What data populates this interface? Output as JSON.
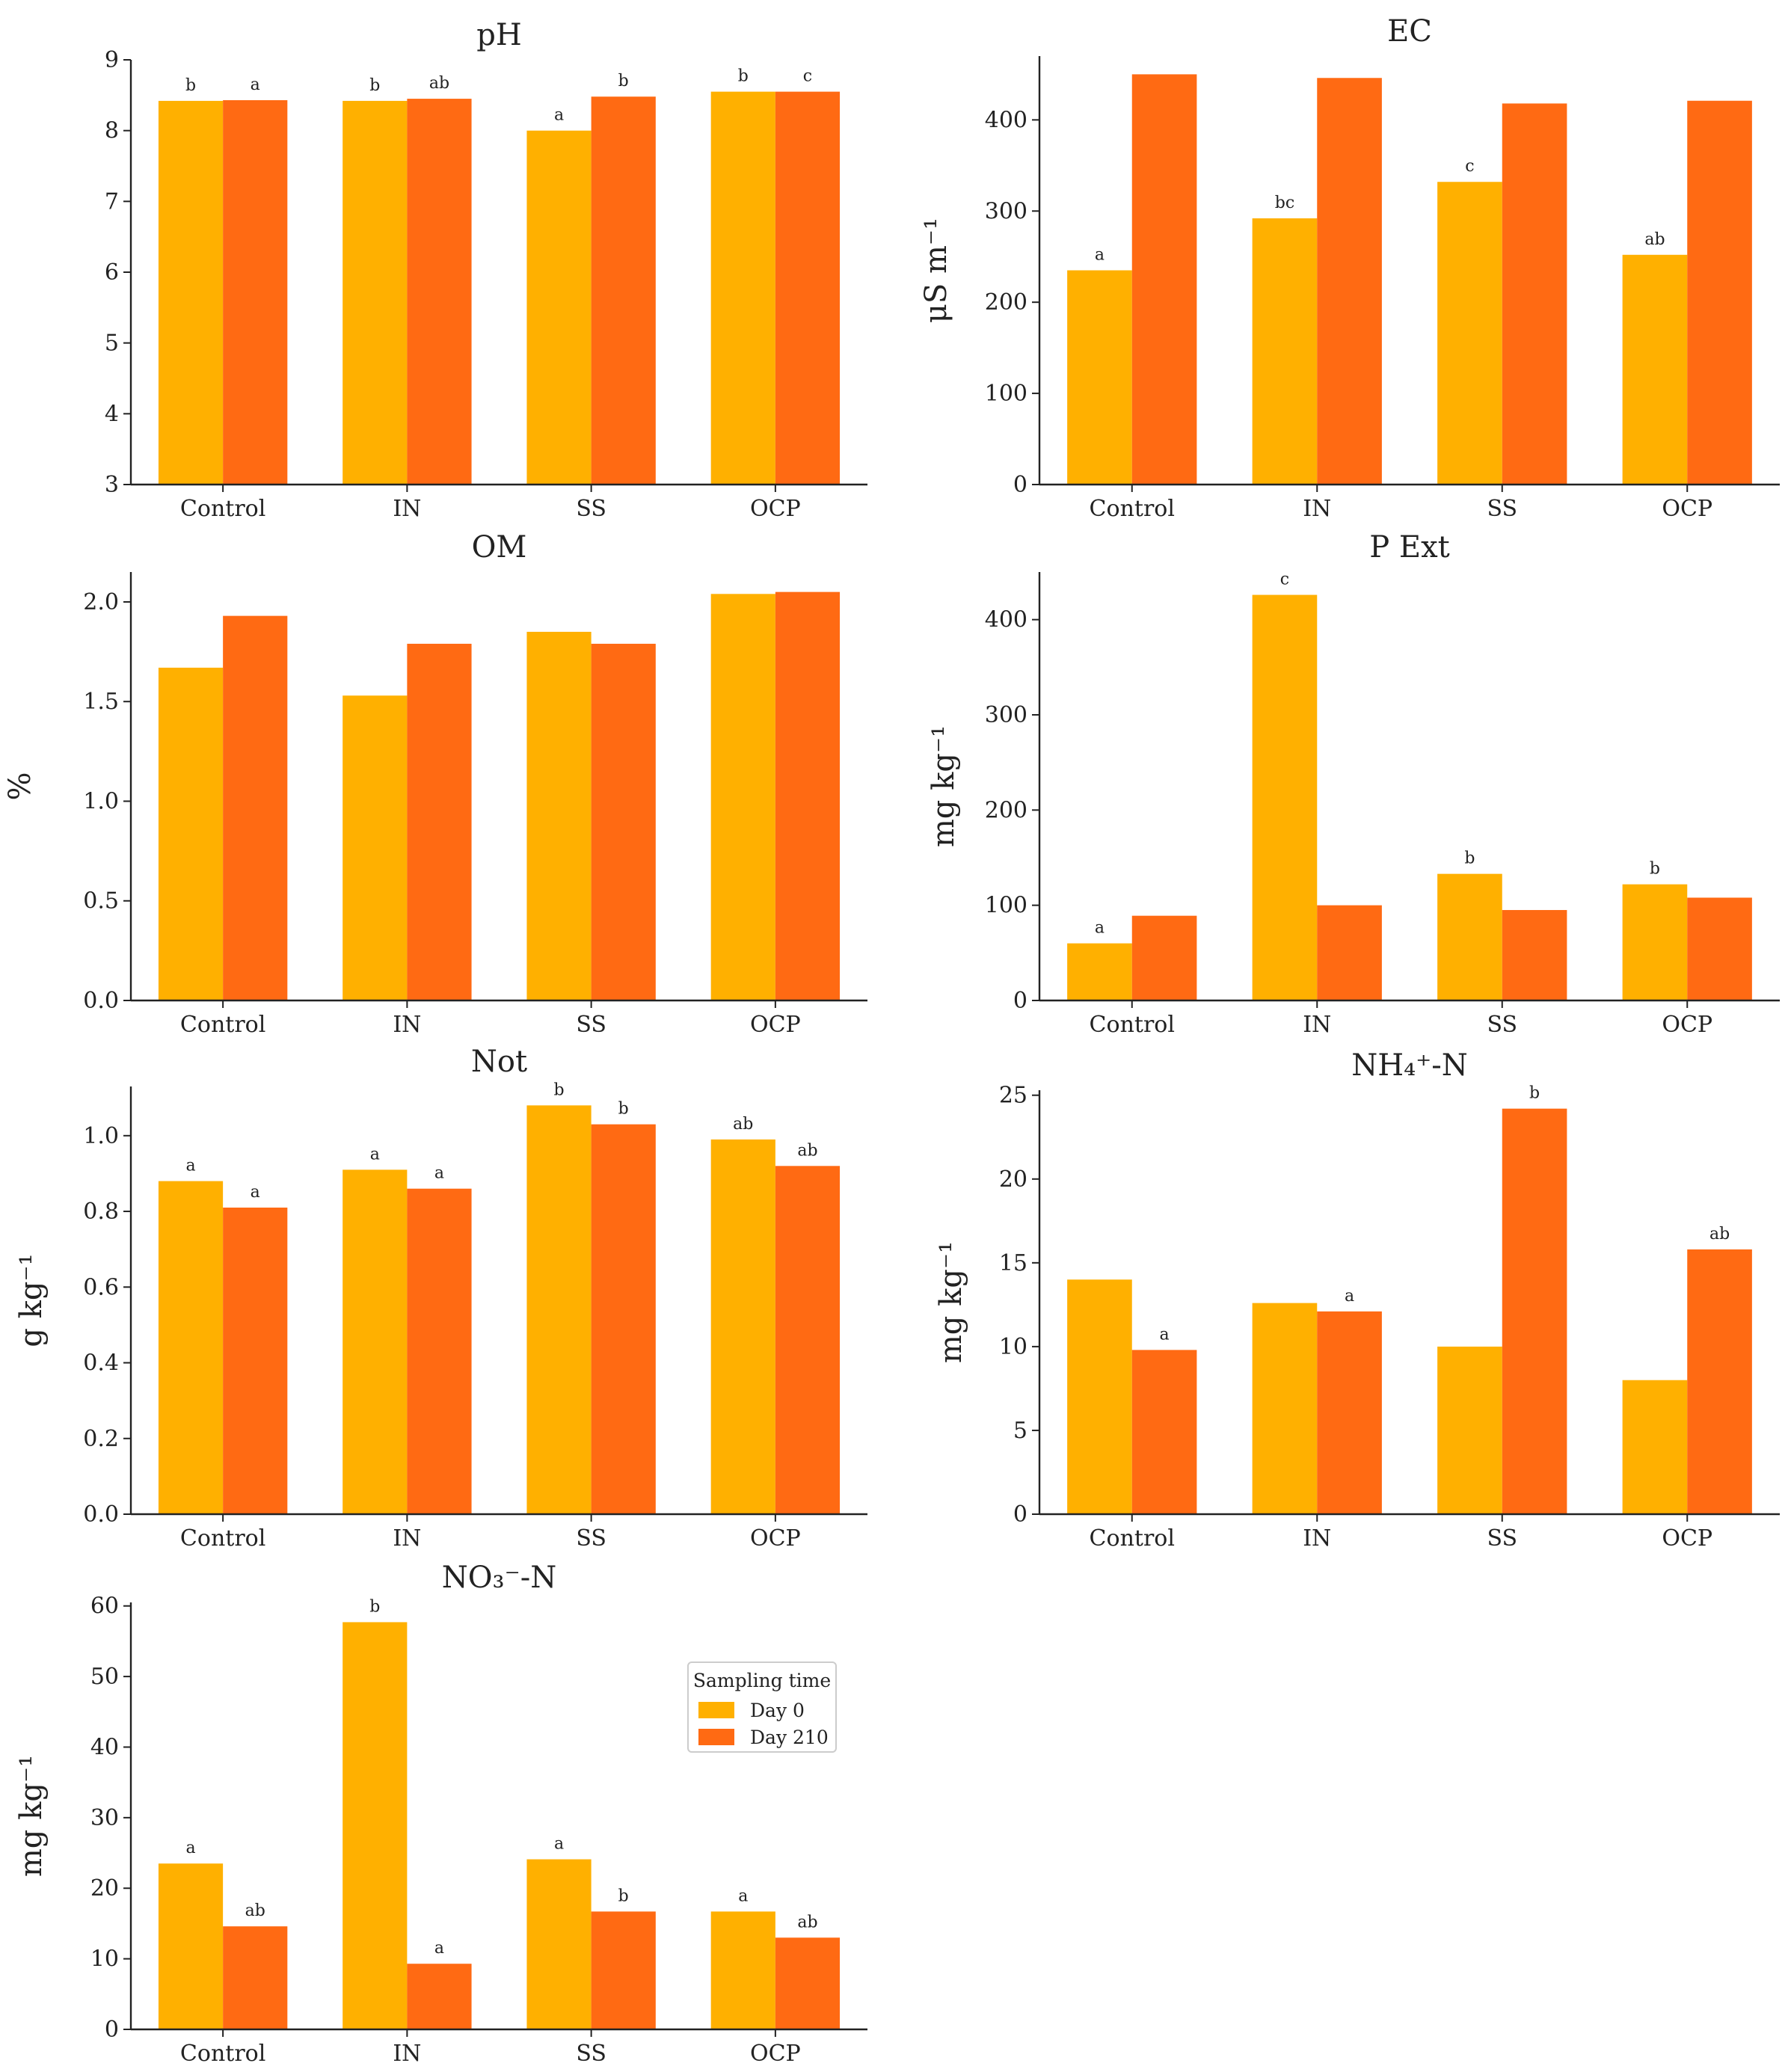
{
  "colors": {
    "day0": "#ffb000",
    "day210": "#ff6a13",
    "axis": "#222222"
  },
  "legend": {
    "title": "Sampling time",
    "items": [
      "Day 0",
      "Day 210"
    ]
  },
  "chart_data": [
    {
      "id": "ph",
      "type": "bar",
      "title": "pH",
      "ylabel": "",
      "categories": [
        "Control",
        "IN",
        "SS",
        "OCP"
      ],
      "ylim": [
        3,
        9
      ],
      "yticks": [
        "3",
        "4",
        "5",
        "6",
        "7",
        "8",
        "9"
      ],
      "series": [
        {
          "name": "Day 0",
          "values": [
            8.42,
            8.42,
            8.0,
            8.55
          ],
          "letters": [
            "b",
            "b",
            "a",
            "b"
          ]
        },
        {
          "name": "Day 210",
          "values": [
            8.43,
            8.45,
            8.48,
            8.55
          ],
          "letters": [
            "a",
            "ab",
            "b",
            "c"
          ]
        }
      ]
    },
    {
      "id": "ec",
      "type": "bar",
      "title": "EC",
      "ylabel": "μS m⁻¹",
      "categories": [
        "Control",
        "IN",
        "SS",
        "OCP"
      ],
      "ylim": [
        0,
        470
      ],
      "yticks": [
        "0",
        "100",
        "200",
        "300",
        "400"
      ],
      "series": [
        {
          "name": "Day 0",
          "values": [
            235,
            292,
            332,
            252
          ],
          "letters": [
            "a",
            "bc",
            "c",
            "ab"
          ]
        },
        {
          "name": "Day 210",
          "values": [
            450,
            446,
            418,
            421
          ],
          "letters": [
            "",
            "",
            "",
            ""
          ]
        }
      ]
    },
    {
      "id": "om",
      "type": "bar",
      "title": "OM",
      "ylabel": "%",
      "categories": [
        "Control",
        "IN",
        "SS",
        "OCP"
      ],
      "ylim": [
        0,
        2.15
      ],
      "yticks": [
        "0.0",
        "0.5",
        "1.0",
        "1.5",
        "2.0"
      ],
      "series": [
        {
          "name": "Day 0",
          "values": [
            1.67,
            1.53,
            1.85,
            2.04
          ],
          "letters": [
            "",
            "",
            "",
            ""
          ]
        },
        {
          "name": "Day 210",
          "values": [
            1.93,
            1.79,
            1.79,
            2.05
          ],
          "letters": [
            "",
            "",
            "",
            ""
          ]
        }
      ]
    },
    {
      "id": "pext",
      "type": "bar",
      "title": "P Ext",
      "ylabel": "mg kg⁻¹",
      "categories": [
        "Control",
        "IN",
        "SS",
        "OCP"
      ],
      "ylim": [
        0,
        450
      ],
      "yticks": [
        "0",
        "100",
        "200",
        "300",
        "400"
      ],
      "series": [
        {
          "name": "Day 0",
          "values": [
            60,
            426,
            133,
            122
          ],
          "letters": [
            "a",
            "c",
            "b",
            "b"
          ]
        },
        {
          "name": "Day 210",
          "values": [
            89,
            100,
            95,
            108
          ],
          "letters": [
            "",
            "",
            "",
            ""
          ]
        }
      ]
    },
    {
      "id": "not",
      "type": "bar",
      "title": "Not",
      "ylabel": "g kg⁻¹",
      "categories": [
        "Control",
        "IN",
        "SS",
        "OCP"
      ],
      "ylim": [
        0,
        1.13
      ],
      "yticks": [
        "0.0",
        "0.2",
        "0.4",
        "0.6",
        "0.8",
        "1.0"
      ],
      "series": [
        {
          "name": "Day 0",
          "values": [
            0.88,
            0.91,
            1.08,
            0.99
          ],
          "letters": [
            "a",
            "a",
            "b",
            "ab"
          ]
        },
        {
          "name": "Day 210",
          "values": [
            0.81,
            0.86,
            1.03,
            0.92
          ],
          "letters": [
            "a",
            "a",
            "b",
            "ab"
          ]
        }
      ]
    },
    {
      "id": "nh4",
      "type": "bar",
      "title": "NH₄⁺-N",
      "ylabel": "mg kg⁻¹",
      "categories": [
        "Control",
        "IN",
        "SS",
        "OCP"
      ],
      "ylim": [
        0,
        25.3
      ],
      "yticks": [
        "0",
        "5",
        "10",
        "15",
        "20",
        "25"
      ],
      "series": [
        {
          "name": "Day 0",
          "values": [
            14.0,
            12.6,
            10.0,
            8.0
          ],
          "letters": [
            "",
            "",
            "",
            ""
          ]
        },
        {
          "name": "Day 210",
          "values": [
            9.8,
            12.1,
            24.2,
            15.8
          ],
          "letters": [
            "a",
            "a",
            "b",
            "ab"
          ]
        }
      ]
    },
    {
      "id": "no3",
      "type": "bar",
      "title": "NO₃⁻-N",
      "ylabel": "mg kg⁻¹",
      "categories": [
        "Control",
        "IN",
        "SS",
        "OCP"
      ],
      "ylim": [
        0,
        60.5
      ],
      "yticks": [
        "0",
        "10",
        "20",
        "30",
        "40",
        "50",
        "60"
      ],
      "series": [
        {
          "name": "Day 0",
          "values": [
            23.5,
            57.7,
            24.1,
            16.7
          ],
          "letters": [
            "a",
            "b",
            "a",
            "a"
          ]
        },
        {
          "name": "Day 210",
          "values": [
            14.6,
            9.3,
            16.7,
            13.0
          ],
          "letters": [
            "ab",
            "a",
            "b",
            "ab"
          ]
        }
      ]
    }
  ]
}
